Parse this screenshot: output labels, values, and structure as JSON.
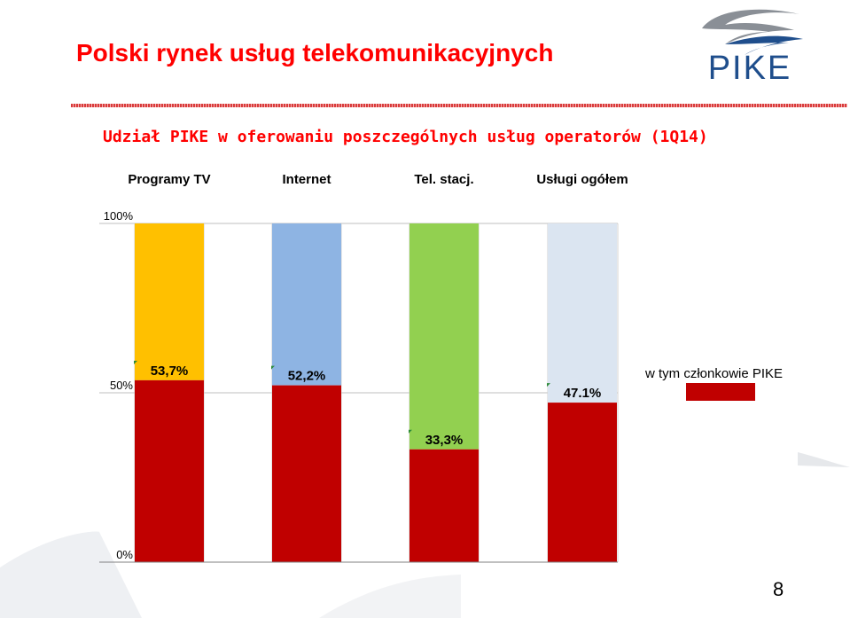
{
  "title": "Polski rynek usług telekomunikacyjnych",
  "logo": {
    "text": "PIKE"
  },
  "subtitle": "Udział PIKE w oferowaniu poszczególnych usług operatorów (1Q14)",
  "page_number": "8",
  "chart_data": {
    "type": "bar",
    "stacked": "100%",
    "categories": [
      "Programy TV",
      "Internet",
      "Tel. stacj.",
      "Usługi ogółem"
    ],
    "series": [
      {
        "name": "w tym członkowie PIKE",
        "values": [
          53.7,
          52.2,
          33.3,
          47.1
        ],
        "data_labels": [
          "53,7%",
          "52,2%",
          "33,3%",
          "47.1%"
        ],
        "color": "#c00000"
      },
      {
        "values": [
          46.3,
          47.8,
          66.7,
          52.9
        ],
        "colors": [
          "#ffc000",
          "#8eb4e3",
          "#92d050",
          "#dbe5f1"
        ]
      }
    ],
    "ylim": [
      0,
      100
    ],
    "ytick_values": [
      0,
      50,
      100
    ],
    "ytick_labels": [
      "0%",
      "50%",
      "100%"
    ],
    "grid": true,
    "legend_position": "right"
  },
  "colors": {
    "title": "#ff0000",
    "logo_blue": "#1f4e8c",
    "logo_gray": "#8a8f96"
  }
}
